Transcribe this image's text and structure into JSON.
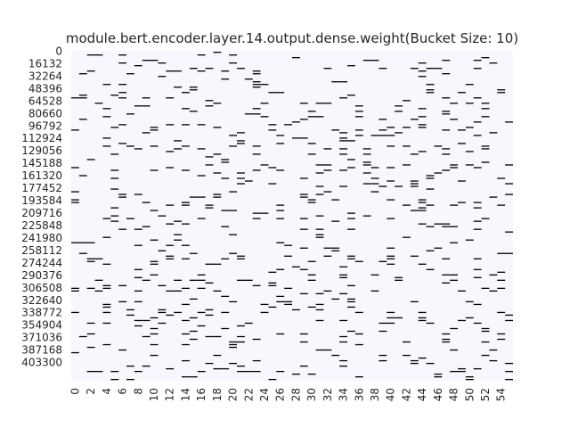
{
  "chart_data": {
    "type": "heatmap",
    "title": "module.bert.encoder.layer.14.output.dense.weight(Bucket Size: 10)",
    "xlabel": "",
    "ylabel": "",
    "x_tick_labels": [
      "0",
      "2",
      "4",
      "6",
      "8",
      "10",
      "12",
      "14",
      "16",
      "18",
      "20",
      "22",
      "24",
      "26",
      "28",
      "30",
      "32",
      "34",
      "36",
      "38",
      "40",
      "42",
      "44",
      "46",
      "48",
      "50",
      "52",
      "54"
    ],
    "y_tick_labels": [
      "0",
      "16132",
      "32264",
      "48396",
      "64528",
      "80660",
      "96792",
      "112924",
      "129056",
      "145188",
      "161320",
      "177452",
      "193584",
      "209716",
      "225848",
      "241980",
      "258112",
      "274244",
      "290376",
      "306508",
      "322640",
      "338772",
      "354904",
      "371036",
      "387168",
      "403300"
    ],
    "columns": 56,
    "y_step": 16132,
    "colors": {
      "background": "#f7f8fe",
      "mark": "#000000",
      "text": "#262626"
    },
    "grid": false,
    "colorbar": false
  }
}
